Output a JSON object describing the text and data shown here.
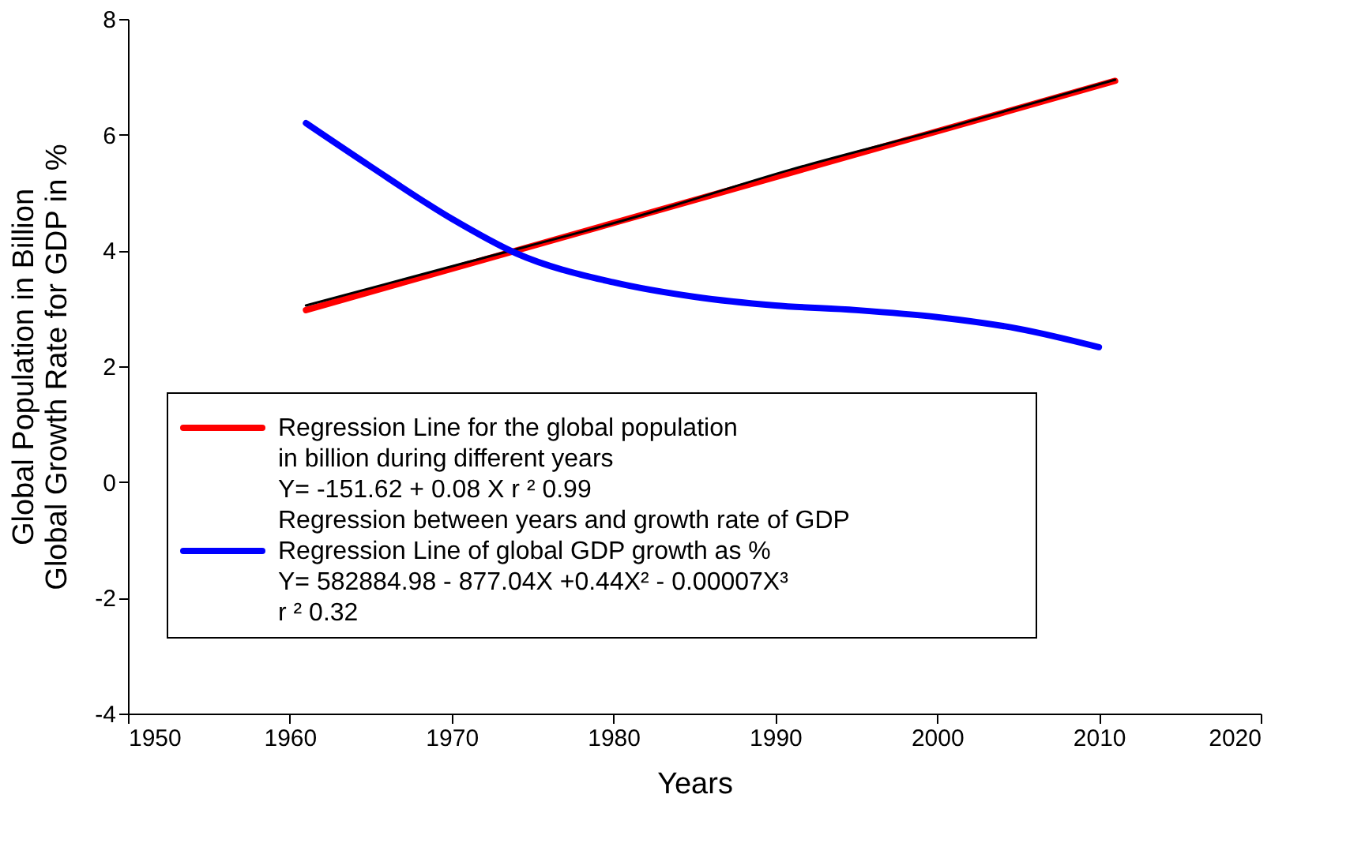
{
  "chart_data": {
    "type": "line",
    "xlabel": "Years",
    "ylabel": "Global Population in Billion\nGlobal Growth Rate for GDP in %",
    "xlim": [
      1950,
      2020
    ],
    "xticks": [
      1950,
      1960,
      1970,
      1980,
      1990,
      2000,
      2010,
      2020
    ],
    "ylim": [
      -4,
      8
    ],
    "yticks": [
      -4,
      -2,
      0,
      2,
      4,
      6,
      8
    ],
    "grid": false,
    "legend": "bottom left",
    "marker": "none",
    "line_style": "solid",
    "series": [
      {
        "name": "Regression Line for the global population\n in billion during different years",
        "color": "#ff0000",
        "x": [
          1961,
          2011
        ],
        "values": [
          2.97,
          6.93
        ]
      },
      {
        "color": "#000000",
        "x": [
          1961,
          1971,
          1981,
          1991,
          2001,
          2011
        ],
        "values": [
          3.05,
          3.8,
          4.55,
          5.4,
          6.15,
          6.95
        ]
      },
      {
        "name": "Regression Line of global GDP growth as %",
        "color": "#0000ff",
        "x": [
          1961,
          1965,
          1970,
          1974,
          1980,
          1985,
          1990,
          1995,
          2000,
          2005,
          2010
        ],
        "values": [
          6.2,
          5.45,
          4.55,
          3.95,
          3.45,
          3.2,
          3.05,
          2.97,
          2.85,
          2.65,
          2.33
        ]
      }
    ],
    "annotations": [
      "Y= -151.62 + 0.08 X r ²  0.99",
      "Regression between years and growth rate of GDP",
      " Y= 582884.98 - 877.04X +0.44X² - 0.00007X³",
      "r ²  0.32"
    ]
  }
}
